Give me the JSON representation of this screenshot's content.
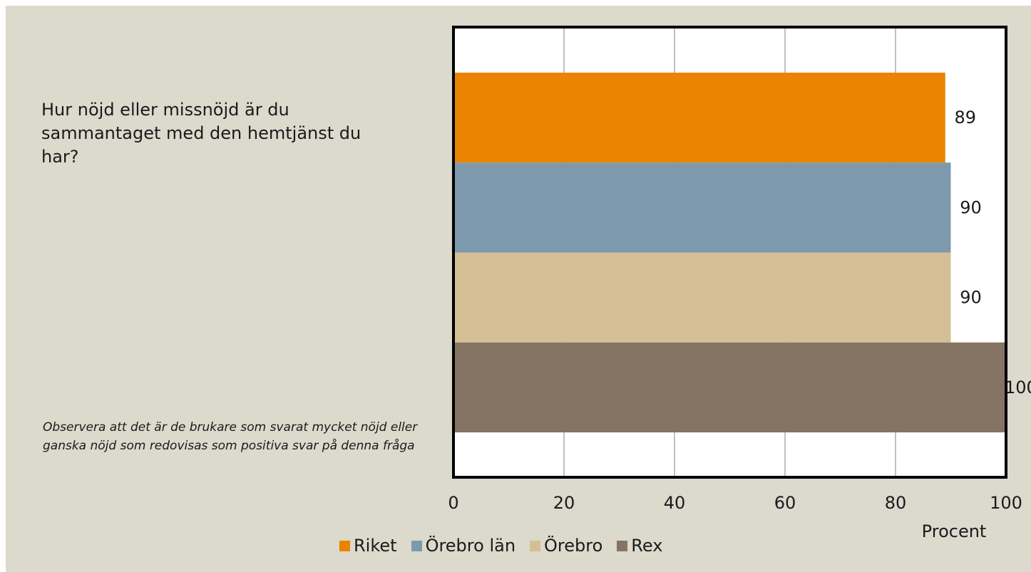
{
  "question": "Hur nöjd eller missnöjd är du sammantaget med den hemtjänst du har?",
  "note": "Observera att det är de brukare som svarat mycket  nöjd eller ganska nöjd som redovisas som positiva svar på denna fråga",
  "chart_data": {
    "type": "bar",
    "orientation": "horizontal",
    "xlabel": "Procent",
    "xlim": [
      0,
      100
    ],
    "xticks": [
      0,
      20,
      40,
      60,
      80,
      100
    ],
    "grid": true,
    "legend_position": "bottom",
    "series": [
      {
        "name": "Riket",
        "value": 89,
        "color": "#e98300"
      },
      {
        "name": "Örebro län",
        "value": 90,
        "color": "#7d9aad"
      },
      {
        "name": "Örebro",
        "value": 90,
        "color": "#d4bf95"
      },
      {
        "name": "Rex",
        "value": 100,
        "color": "#857464"
      }
    ]
  }
}
